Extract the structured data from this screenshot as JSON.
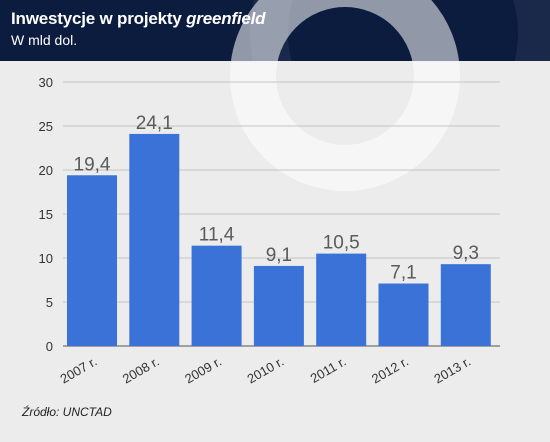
{
  "header": {
    "title_plain": "Inwestycje w projekty ",
    "title_italic": "greenfield",
    "subtitle": "W mld dol."
  },
  "source": "Źródło: UNCTAD",
  "colors": {
    "header_bg": "#0c1c3e",
    "bar": "#3a72d8",
    "plot_bg": "#ececec"
  },
  "chart_data": {
    "type": "bar",
    "categories": [
      "2007 r.",
      "2008 r.",
      "2009 r.",
      "2010 r.",
      "2011 r.",
      "2012 r.",
      "2013 r."
    ],
    "values": [
      19.4,
      24.1,
      11.4,
      9.1,
      10.5,
      7.1,
      9.3
    ],
    "value_labels": [
      "19,4",
      "24,1",
      "11,4",
      "9,1",
      "10,5",
      "7,1",
      "9,3"
    ],
    "yticks": [
      0,
      5,
      10,
      15,
      20,
      25,
      30
    ],
    "ylim": [
      0,
      30
    ],
    "grid": true
  }
}
